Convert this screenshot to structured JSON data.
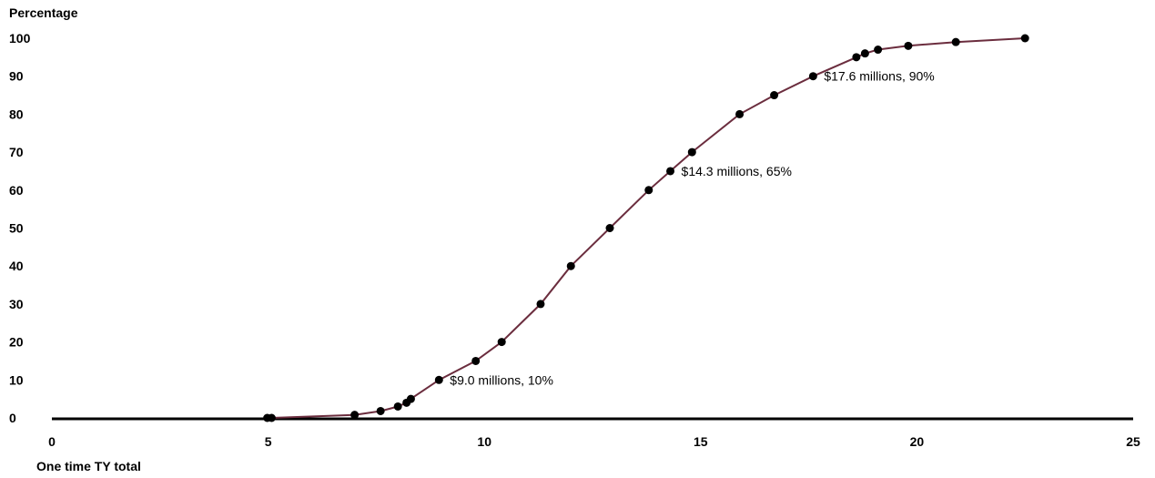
{
  "chart_data": {
    "type": "line",
    "title": "",
    "ylabel": "Percentage",
    "xlabel": "One time TY total",
    "xlim": [
      0,
      25
    ],
    "ylim": [
      0,
      100
    ],
    "xticks": [
      0,
      5,
      10,
      15,
      20,
      25
    ],
    "yticks": [
      0,
      10,
      20,
      30,
      40,
      50,
      60,
      70,
      80,
      90,
      100
    ],
    "series": [
      {
        "color": "#6b2d3e",
        "marker_color": "#000000",
        "x": [
          4.98,
          5.08,
          7.0,
          7.6,
          8.0,
          8.2,
          8.3,
          8.95,
          9.8,
          10.4,
          11.3,
          12.0,
          12.9,
          13.8,
          14.3,
          14.8,
          15.9,
          16.7,
          17.6,
          18.6,
          18.8,
          19.1,
          19.8,
          20.9,
          22.5
        ],
        "y": [
          0,
          0,
          0.8,
          1.8,
          3,
          4,
          5,
          10,
          15,
          20,
          30,
          40,
          50,
          60,
          65,
          70,
          80,
          85,
          90,
          95,
          96,
          97,
          98,
          99,
          100
        ]
      }
    ],
    "annotations": [
      {
        "text": "$9.0 millions, 10%",
        "x": 8.95,
        "y": 10
      },
      {
        "text": "$14.3 millions, 65%",
        "x": 14.3,
        "y": 65
      },
      {
        "text": "$17.6 millions, 90%",
        "x": 17.6,
        "y": 90
      }
    ]
  }
}
